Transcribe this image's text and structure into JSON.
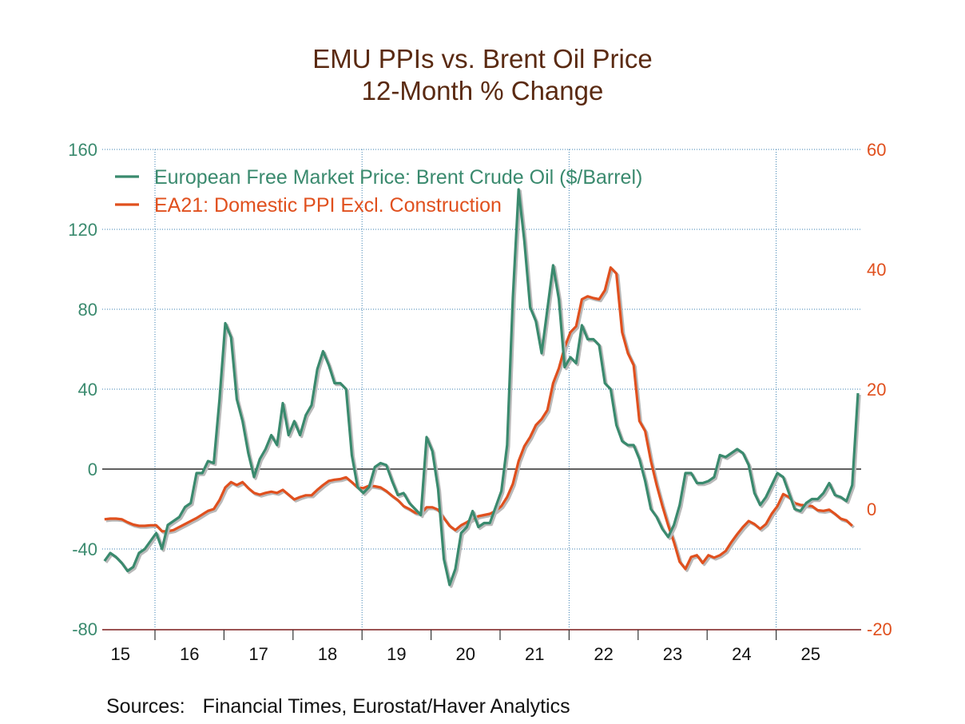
{
  "chart_data": {
    "type": "line",
    "title": "EMU PPIs vs. Brent Oil Price",
    "subtitle": "12-Month % Change",
    "x_start": "2015-04",
    "x_frequency": "monthly",
    "x_tick_labels": [
      "15",
      "16",
      "17",
      "18",
      "19",
      "20",
      "21",
      "22",
      "23",
      "24",
      "25"
    ],
    "left_axis": {
      "range": [
        -80,
        160
      ],
      "ticks": [
        160,
        120,
        80,
        40,
        0,
        -40,
        -80
      ],
      "color": "#3a8a6e"
    },
    "right_axis": {
      "range": [
        -20,
        60
      ],
      "ticks": [
        60,
        40,
        20,
        0,
        -20
      ],
      "color": "#e0501e"
    },
    "grid": true,
    "legend_position": "top-left",
    "series": [
      {
        "name": "European Free Market Price: Brent Crude Oil ($/Barrel)",
        "axis": "left",
        "color": "#3a8a6e",
        "values": [
          -46,
          -42,
          -44,
          -47,
          -51,
          -49,
          -42,
          -40,
          -36,
          -32,
          -40,
          -28,
          -26,
          -24,
          -19,
          -17,
          -2,
          -2,
          4,
          3,
          35,
          73,
          66,
          35,
          24,
          8,
          -4,
          5,
          10,
          17,
          12,
          33,
          17,
          24,
          17,
          27,
          32,
          50,
          59,
          52,
          43,
          43,
          40,
          7,
          -9,
          -12,
          -9,
          1,
          3,
          2,
          -6,
          -13,
          -12,
          -17,
          -20,
          -23,
          16,
          9,
          -10,
          -45,
          -58,
          -50,
          -32,
          -29,
          -21,
          -29,
          -27,
          -27,
          -19,
          -11,
          12,
          86,
          140,
          114,
          81,
          74,
          58,
          80,
          102,
          85,
          51,
          56,
          53,
          72,
          65,
          65,
          62,
          43,
          40,
          22,
          14,
          12,
          12,
          5,
          -6,
          -20,
          -24,
          -30,
          -34,
          -28,
          -18,
          -2,
          -2,
          -7,
          -7,
          -6,
          -4,
          7,
          6,
          8,
          10,
          8,
          2,
          -12,
          -18,
          -14,
          -8,
          -2,
          -4,
          -12,
          -20,
          -21,
          -17,
          -15,
          -15,
          -12,
          -7,
          -13,
          -14,
          -16,
          -8,
          38
        ]
      },
      {
        "name": "EA21: Domestic PPI Excl. Construction",
        "axis": "right",
        "color": "#e0501e",
        "values": [
          -1.7,
          -1.6,
          -1.6,
          -1.7,
          -2.2,
          -2.6,
          -2.8,
          -2.8,
          -2.7,
          -2.7,
          -3.7,
          -3.7,
          -3.5,
          -3.0,
          -2.5,
          -2.0,
          -1.5,
          -0.9,
          -0.3,
          0,
          1.5,
          3.6,
          4.5,
          4.0,
          4.5,
          3.5,
          2.7,
          2.4,
          2.7,
          2.9,
          2.7,
          3.2,
          2.4,
          1.6,
          2.0,
          2.3,
          2.3,
          3.2,
          4.0,
          4.7,
          4.9,
          5.0,
          5.3,
          4.5,
          3.6,
          3.5,
          3.9,
          3.8,
          3.6,
          3.0,
          2.2,
          1.5,
          0.5,
          0,
          -0.6,
          -0.8,
          0.3,
          0.3,
          -0.1,
          -1.5,
          -2.8,
          -3.5,
          -2.7,
          -2.2,
          -1.6,
          -1.2,
          -1.0,
          -0.8,
          -0.3,
          0.5,
          2.0,
          4.2,
          8.0,
          10.5,
          12.0,
          14.0,
          15.0,
          16.5,
          21.0,
          23.5,
          27.0,
          29.5,
          30.5,
          35.0,
          35.5,
          35.2,
          35.0,
          36.5,
          40.3,
          39.3,
          29.5,
          26.0,
          24.0,
          14.7,
          13.0,
          8.0,
          4.0,
          0.5,
          -2.7,
          -5.5,
          -8.8,
          -10.0,
          -8.0,
          -7.7,
          -9.0,
          -7.7,
          -8.1,
          -7.7,
          -7.0,
          -5.5,
          -4.2,
          -3.0,
          -2.0,
          -2.5,
          -3.3,
          -2.5,
          -0.8,
          0.5,
          2.5,
          2.0,
          1.0,
          0.7,
          0.6,
          0.5,
          -0.2,
          -0.3,
          -0.1,
          -0.8,
          -1.6,
          -1.9,
          -2.8
        ]
      }
    ]
  },
  "sources": {
    "label": "Sources:",
    "text": "Financial Times, Eurostat/Haver Analytics"
  }
}
